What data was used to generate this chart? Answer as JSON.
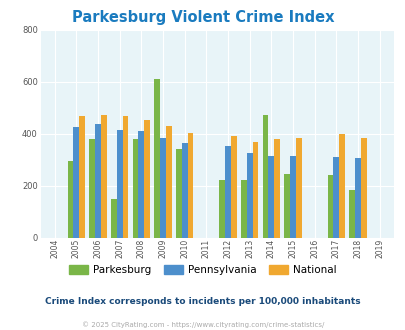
{
  "title": "Parkesburg Violent Crime Index",
  "title_color": "#1a7bbf",
  "years": [
    2004,
    2005,
    2006,
    2007,
    2008,
    2009,
    2010,
    2011,
    2012,
    2013,
    2014,
    2015,
    2016,
    2017,
    2018,
    2019
  ],
  "parkesburg": [
    null,
    295,
    380,
    150,
    380,
    610,
    340,
    null,
    220,
    220,
    470,
    245,
    null,
    240,
    185,
    null
  ],
  "pennsylvania": [
    null,
    425,
    437,
    415,
    410,
    385,
    365,
    null,
    352,
    327,
    315,
    313,
    null,
    312,
    305,
    null
  ],
  "national": [
    null,
    468,
    472,
    468,
    452,
    430,
    402,
    null,
    390,
    368,
    380,
    385,
    null,
    400,
    385,
    null
  ],
  "parkesburg_color": "#7ab648",
  "pennsylvania_color": "#4d8fcc",
  "national_color": "#f0a830",
  "bg_color": "#e8f4f8",
  "ylim": [
    0,
    800
  ],
  "yticks": [
    0,
    200,
    400,
    600,
    800
  ],
  "bar_width": 0.27,
  "legend_labels": [
    "Parkesburg",
    "Pennsylvania",
    "National"
  ],
  "subtitle": "Crime Index corresponds to incidents per 100,000 inhabitants",
  "subtitle_color": "#1a4a7a",
  "footer": "© 2025 CityRating.com - https://www.cityrating.com/crime-statistics/",
  "footer_color": "#aaaaaa"
}
